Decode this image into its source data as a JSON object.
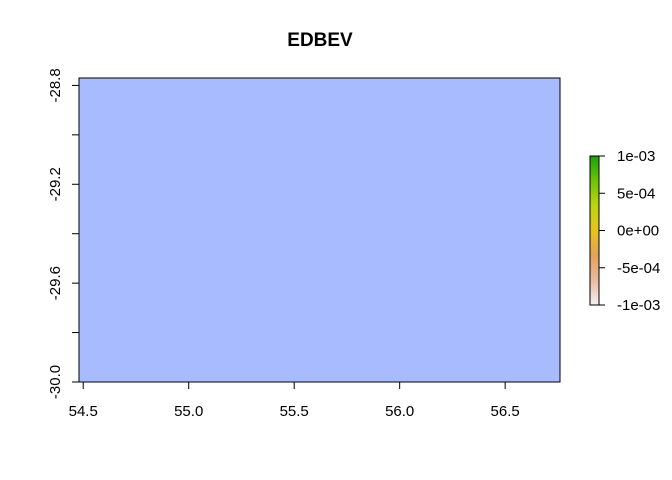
{
  "chart_data": {
    "type": "heatmap",
    "title": "EDBEV",
    "xlabel": "",
    "ylabel": "",
    "xlim": [
      54.48,
      56.76
    ],
    "ylim": [
      -30.0,
      -28.77
    ],
    "x_ticks": [
      {
        "value": 54.5,
        "label": "54.5"
      },
      {
        "value": 55.0,
        "label": "55.0"
      },
      {
        "value": 55.5,
        "label": "55.5"
      },
      {
        "value": 56.0,
        "label": "56.0"
      },
      {
        "value": 56.5,
        "label": "56.5"
      }
    ],
    "y_ticks": [
      {
        "value": -28.8,
        "label": "-28.8"
      },
      {
        "value": -29.0,
        "label": ""
      },
      {
        "value": -29.2,
        "label": "-29.2"
      },
      {
        "value": -29.4,
        "label": ""
      },
      {
        "value": -29.6,
        "label": "-29.6"
      },
      {
        "value": -29.8,
        "label": ""
      },
      {
        "value": -30.0,
        "label": "-30.0"
      }
    ],
    "raster_fill_color": "#a8bbff",
    "grid": false,
    "legend": {
      "placement": "right",
      "range": [
        -0.001,
        0.001
      ],
      "gradient_colors": [
        "#f2f2f2",
        "#ebb99f",
        "#e2a25a",
        "#e6c41f",
        "#bcd50f",
        "#6cc40a",
        "#1ca10b"
      ],
      "ticks": [
        {
          "value": 0.001,
          "label": "1e-03"
        },
        {
          "value": 0.0005,
          "label": "5e-04"
        },
        {
          "value": 0.0,
          "label": "0e+00"
        },
        {
          "value": -0.0005,
          "label": "-5e-04"
        },
        {
          "value": -0.001,
          "label": "-1e-03"
        }
      ]
    }
  }
}
